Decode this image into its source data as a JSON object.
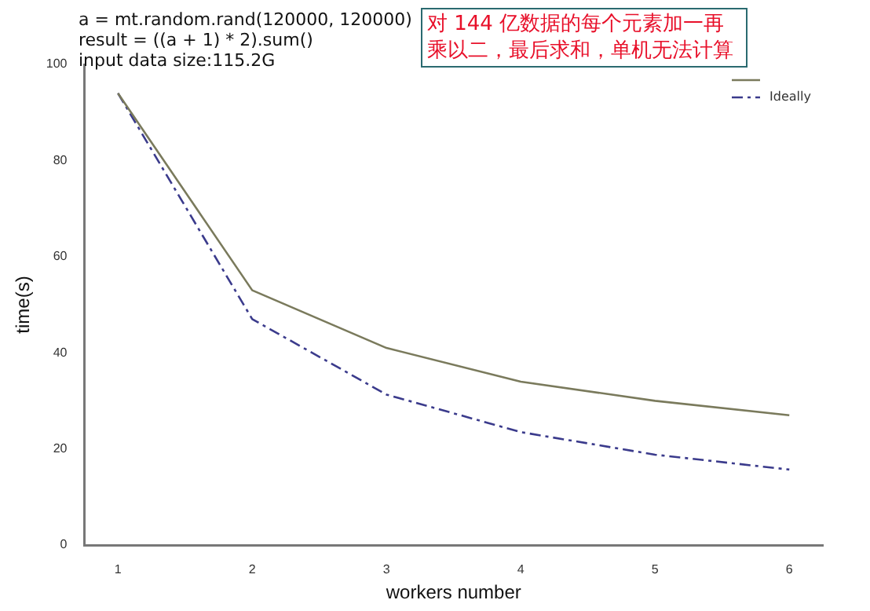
{
  "chart_data": {
    "type": "line",
    "xlabel": "workers number",
    "ylabel": "time(s)",
    "x": [
      1,
      2,
      3,
      4,
      5,
      6
    ],
    "series": [
      {
        "color": "#7a7a5c",
        "values": [
          94,
          53,
          41,
          34,
          30,
          27
        ],
        "line_style": "solid"
      },
      {
        "name": "Ideally",
        "color": "#3b3b8c",
        "values": [
          94,
          47,
          31.3,
          23.5,
          18.8,
          15.7
        ],
        "line_style": "dashed"
      }
    ],
    "xlim": [
      0.75,
      6.25
    ],
    "xticks": [
      1,
      2,
      3,
      4,
      5,
      6
    ],
    "ylim": [
      0,
      100
    ],
    "yticks": [
      0,
      20,
      40,
      60,
      80,
      100
    ],
    "grid": false,
    "legend": "top right",
    "marker": "none",
    "annotations": [
      "a = mt.random.rand(120000, 120000)\nresult = ((a + 1) * 2).sum()\ninput data size:115.2G",
      "对 144 亿数据的每个元素加一再乘以二，最后求和，单机无法计算"
    ]
  }
}
